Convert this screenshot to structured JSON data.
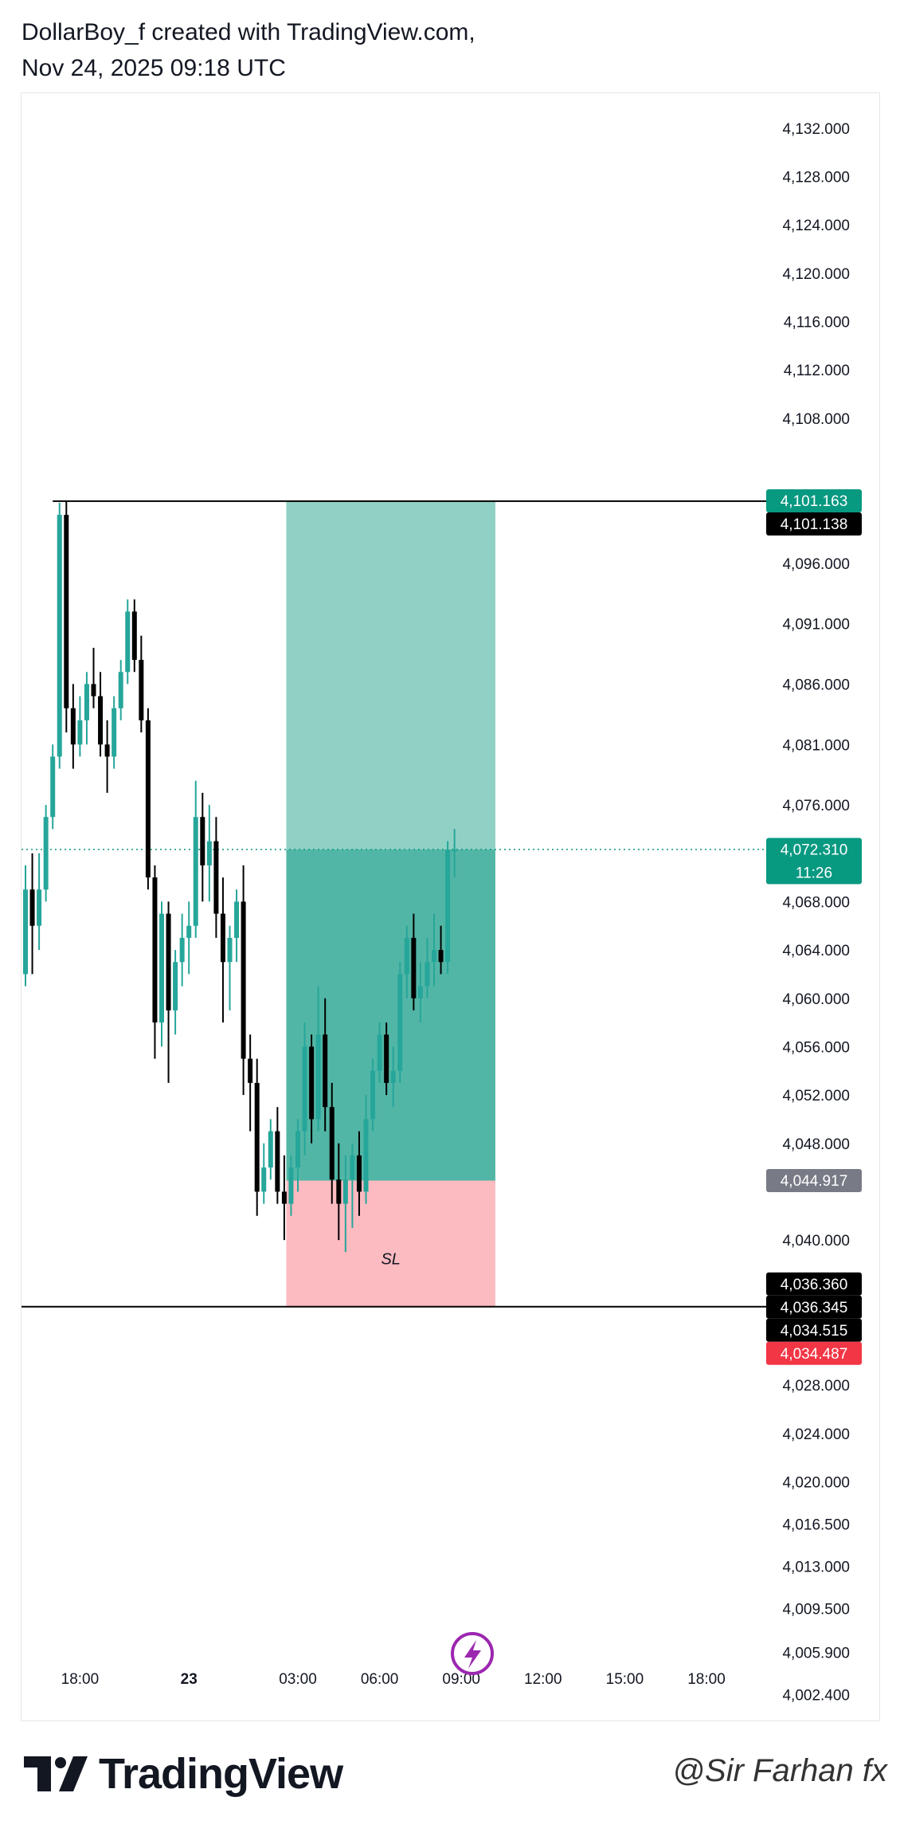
{
  "header": {
    "line1": "DollarBoy_f created with TradingView.com,",
    "line2": "Nov 24, 2025 09:18 UTC"
  },
  "footer": {
    "brand": "TradingView",
    "watermark": "@Sir Farhan fx"
  },
  "colors": {
    "up": "#26a69a",
    "down": "#000000",
    "target_zone": "#8fd1c4",
    "entry_zone": "#52b6a6",
    "stop_zone": "#fcbac1",
    "current_price": "#089981",
    "stop_label": "#f23645",
    "entry_label": "#787b86",
    "icon": "#9c27b0"
  },
  "chart_data": {
    "type": "candlestick",
    "ylim": [
      4001.5,
      4133.5
    ],
    "y_ticks": [
      {
        "value": 4132.0,
        "label": "4,132.000"
      },
      {
        "value": 4128.0,
        "label": "4,128.000"
      },
      {
        "value": 4124.0,
        "label": "4,124.000"
      },
      {
        "value": 4120.0,
        "label": "4,120.000"
      },
      {
        "value": 4116.0,
        "label": "4,116.000"
      },
      {
        "value": 4112.0,
        "label": "4,112.000"
      },
      {
        "value": 4108.0,
        "label": "4,108.000"
      },
      {
        "value": 4096.0,
        "label": "4,096.000"
      },
      {
        "value": 4091.0,
        "label": "4,091.000"
      },
      {
        "value": 4086.0,
        "label": "4,086.000"
      },
      {
        "value": 4081.0,
        "label": "4,081.000"
      },
      {
        "value": 4076.0,
        "label": "4,076.000"
      },
      {
        "value": 4068.0,
        "label": "4,068.000"
      },
      {
        "value": 4064.0,
        "label": "4,064.000"
      },
      {
        "value": 4060.0,
        "label": "4,060.000"
      },
      {
        "value": 4056.0,
        "label": "4,056.000"
      },
      {
        "value": 4052.0,
        "label": "4,052.000"
      },
      {
        "value": 4048.0,
        "label": "4,048.000"
      },
      {
        "value": 4040.0,
        "label": "4,040.000"
      },
      {
        "value": 4028.0,
        "label": "4,028.000"
      },
      {
        "value": 4024.0,
        "label": "4,024.000"
      },
      {
        "value": 4020.0,
        "label": "4,020.000"
      },
      {
        "value": 4016.5,
        "label": "4,016.500"
      },
      {
        "value": 4013.0,
        "label": "4,013.000"
      },
      {
        "value": 4009.5,
        "label": "4,009.500"
      },
      {
        "value": 4005.9,
        "label": "4,005.900"
      },
      {
        "value": 4002.4,
        "label": "4,002.400"
      }
    ],
    "x_ticks": [
      {
        "index": 8,
        "label": "18:00",
        "bold": false
      },
      {
        "index": 24,
        "label": "23",
        "bold": true
      },
      {
        "index": 40,
        "label": "03:00",
        "bold": false
      },
      {
        "index": 52,
        "label": "06:00",
        "bold": false
      },
      {
        "index": 64,
        "label": "09:00",
        "bold": false
      },
      {
        "index": 76,
        "label": "12:00",
        "bold": false
      },
      {
        "index": 88,
        "label": "15:00",
        "bold": false
      },
      {
        "index": 100,
        "label": "18:00",
        "bold": false
      }
    ],
    "candles": [
      [
        4062.0,
        4071.0,
        4061.0,
        4069.0
      ],
      [
        4069.0,
        4072.0,
        4062.0,
        4066.0
      ],
      [
        4066.0,
        4072.0,
        4064.0,
        4069.0
      ],
      [
        4069.0,
        4076.0,
        4068.0,
        4075.0
      ],
      [
        4075.0,
        4081.0,
        4074.0,
        4080.0
      ],
      [
        4080.0,
        4101.0,
        4079.0,
        4100.0
      ],
      [
        4100.0,
        4101.1,
        4082.0,
        4084.0
      ],
      [
        4084.0,
        4086.0,
        4079.0,
        4081.0
      ],
      [
        4081.0,
        4085.0,
        4080.0,
        4083.0
      ],
      [
        4083.0,
        4087.0,
        4081.0,
        4086.0
      ],
      [
        4086.0,
        4089.0,
        4084.0,
        4085.0
      ],
      [
        4085.0,
        4087.0,
        4080.0,
        4081.0
      ],
      [
        4081.0,
        4083.0,
        4077.0,
        4080.0
      ],
      [
        4080.0,
        4085.0,
        4079.0,
        4084.0
      ],
      [
        4084.0,
        4088.0,
        4083.0,
        4087.0
      ],
      [
        4087.0,
        4093.0,
        4086.0,
        4092.0
      ],
      [
        4092.0,
        4093.0,
        4087.0,
        4088.0
      ],
      [
        4088.0,
        4090.0,
        4082.0,
        4083.0
      ],
      [
        4083.0,
        4084.0,
        4069.0,
        4070.0
      ],
      [
        4070.0,
        4071.0,
        4055.0,
        4058.0
      ],
      [
        4058.0,
        4068.0,
        4056.0,
        4067.0
      ],
      [
        4067.0,
        4068.0,
        4053.0,
        4059.0
      ],
      [
        4059.0,
        4064.0,
        4057.0,
        4063.0
      ],
      [
        4063.0,
        4067.0,
        4061.0,
        4065.0
      ],
      [
        4065.0,
        4068.0,
        4062.0,
        4066.0
      ],
      [
        4066.0,
        4078.0,
        4065.0,
        4075.0
      ],
      [
        4075.0,
        4077.0,
        4068.0,
        4071.0
      ],
      [
        4071.0,
        4076.0,
        4068.0,
        4073.0
      ],
      [
        4073.0,
        4075.0,
        4065.0,
        4067.0
      ],
      [
        4067.0,
        4070.0,
        4058.0,
        4063.0
      ],
      [
        4063.0,
        4066.0,
        4059.0,
        4065.0
      ],
      [
        4065.0,
        4069.0,
        4063.0,
        4068.0
      ],
      [
        4068.0,
        4071.0,
        4052.0,
        4055.0
      ],
      [
        4055.0,
        4057.0,
        4049.0,
        4053.0
      ],
      [
        4053.0,
        4055.0,
        4042.0,
        4044.0
      ],
      [
        4044.0,
        4048.0,
        4043.0,
        4046.0
      ],
      [
        4046.0,
        4050.0,
        4045.0,
        4049.0
      ],
      [
        4049.0,
        4051.0,
        4043.0,
        4044.0
      ],
      [
        4044.0,
        4047.0,
        4040.0,
        4043.0
      ],
      [
        4043.0,
        4047.0,
        4042.0,
        4046.0
      ],
      [
        4046.0,
        4050.0,
        4044.0,
        4049.0
      ],
      [
        4049.0,
        4058.0,
        4047.0,
        4056.0
      ],
      [
        4056.0,
        4057.0,
        4048.0,
        4050.0
      ],
      [
        4050.0,
        4061.0,
        4049.0,
        4057.0
      ],
      [
        4057.0,
        4060.0,
        4049.0,
        4051.0
      ],
      [
        4051.0,
        4053.0,
        4043.0,
        4045.0
      ],
      [
        4045.0,
        4048.0,
        4040.0,
        4043.0
      ],
      [
        4043.0,
        4047.0,
        4039.0,
        4045.0
      ],
      [
        4045.0,
        4048.0,
        4041.0,
        4047.0
      ],
      [
        4047.0,
        4049.0,
        4042.0,
        4044.0
      ],
      [
        4044.0,
        4052.0,
        4043.0,
        4050.0
      ],
      [
        4050.0,
        4055.0,
        4049.0,
        4054.0
      ],
      [
        4054.0,
        4058.0,
        4053.0,
        4057.0
      ],
      [
        4057.0,
        4058.0,
        4052.0,
        4053.0
      ],
      [
        4053.0,
        4056.0,
        4051.0,
        4054.0
      ],
      [
        4054.0,
        4063.0,
        4053.0,
        4062.0
      ],
      [
        4062.0,
        4066.0,
        4060.0,
        4065.0
      ],
      [
        4065.0,
        4067.0,
        4059.0,
        4060.0
      ],
      [
        4060.0,
        4063.0,
        4058.0,
        4061.0
      ],
      [
        4061.0,
        4065.0,
        4060.0,
        4063.0
      ],
      [
        4063.0,
        4067.0,
        4061.0,
        4064.0
      ],
      [
        4064.0,
        4066.0,
        4062.0,
        4063.0
      ],
      [
        4063.0,
        4073.0,
        4062.0,
        4072.3
      ],
      [
        4072.3,
        4074.0,
        4070.0,
        4072.3
      ]
    ],
    "entry_index_start": 39,
    "box_indices": [
      39,
      69
    ],
    "position": {
      "target": 4101.138,
      "entry": 4044.917,
      "stop": 4034.487,
      "label": "SL"
    },
    "horizontal_lines": [
      {
        "value": 4101.138,
        "from_index": 4
      },
      {
        "value": 4034.487,
        "from_index": -1
      }
    ],
    "current_price": 4072.31,
    "price_labels": [
      {
        "value": 4101.163,
        "text": "4,101.163",
        "style": "up"
      },
      {
        "value": 4101.138,
        "text": "4,101.138",
        "style": "dark"
      },
      {
        "value": 4072.31,
        "text": "4,072.310",
        "sub": "11:26",
        "style": "current"
      },
      {
        "value": 4044.917,
        "text": "4,044.917",
        "style": "gray"
      },
      {
        "value": 4036.36,
        "text": "4,036.360",
        "style": "dark"
      },
      {
        "value": 4036.345,
        "text": "4,036.345",
        "style": "dark"
      },
      {
        "value": 4034.515,
        "text": "4,034.515",
        "style": "dark"
      },
      {
        "value": 4034.487,
        "text": "4,034.487",
        "style": "stop"
      }
    ]
  }
}
